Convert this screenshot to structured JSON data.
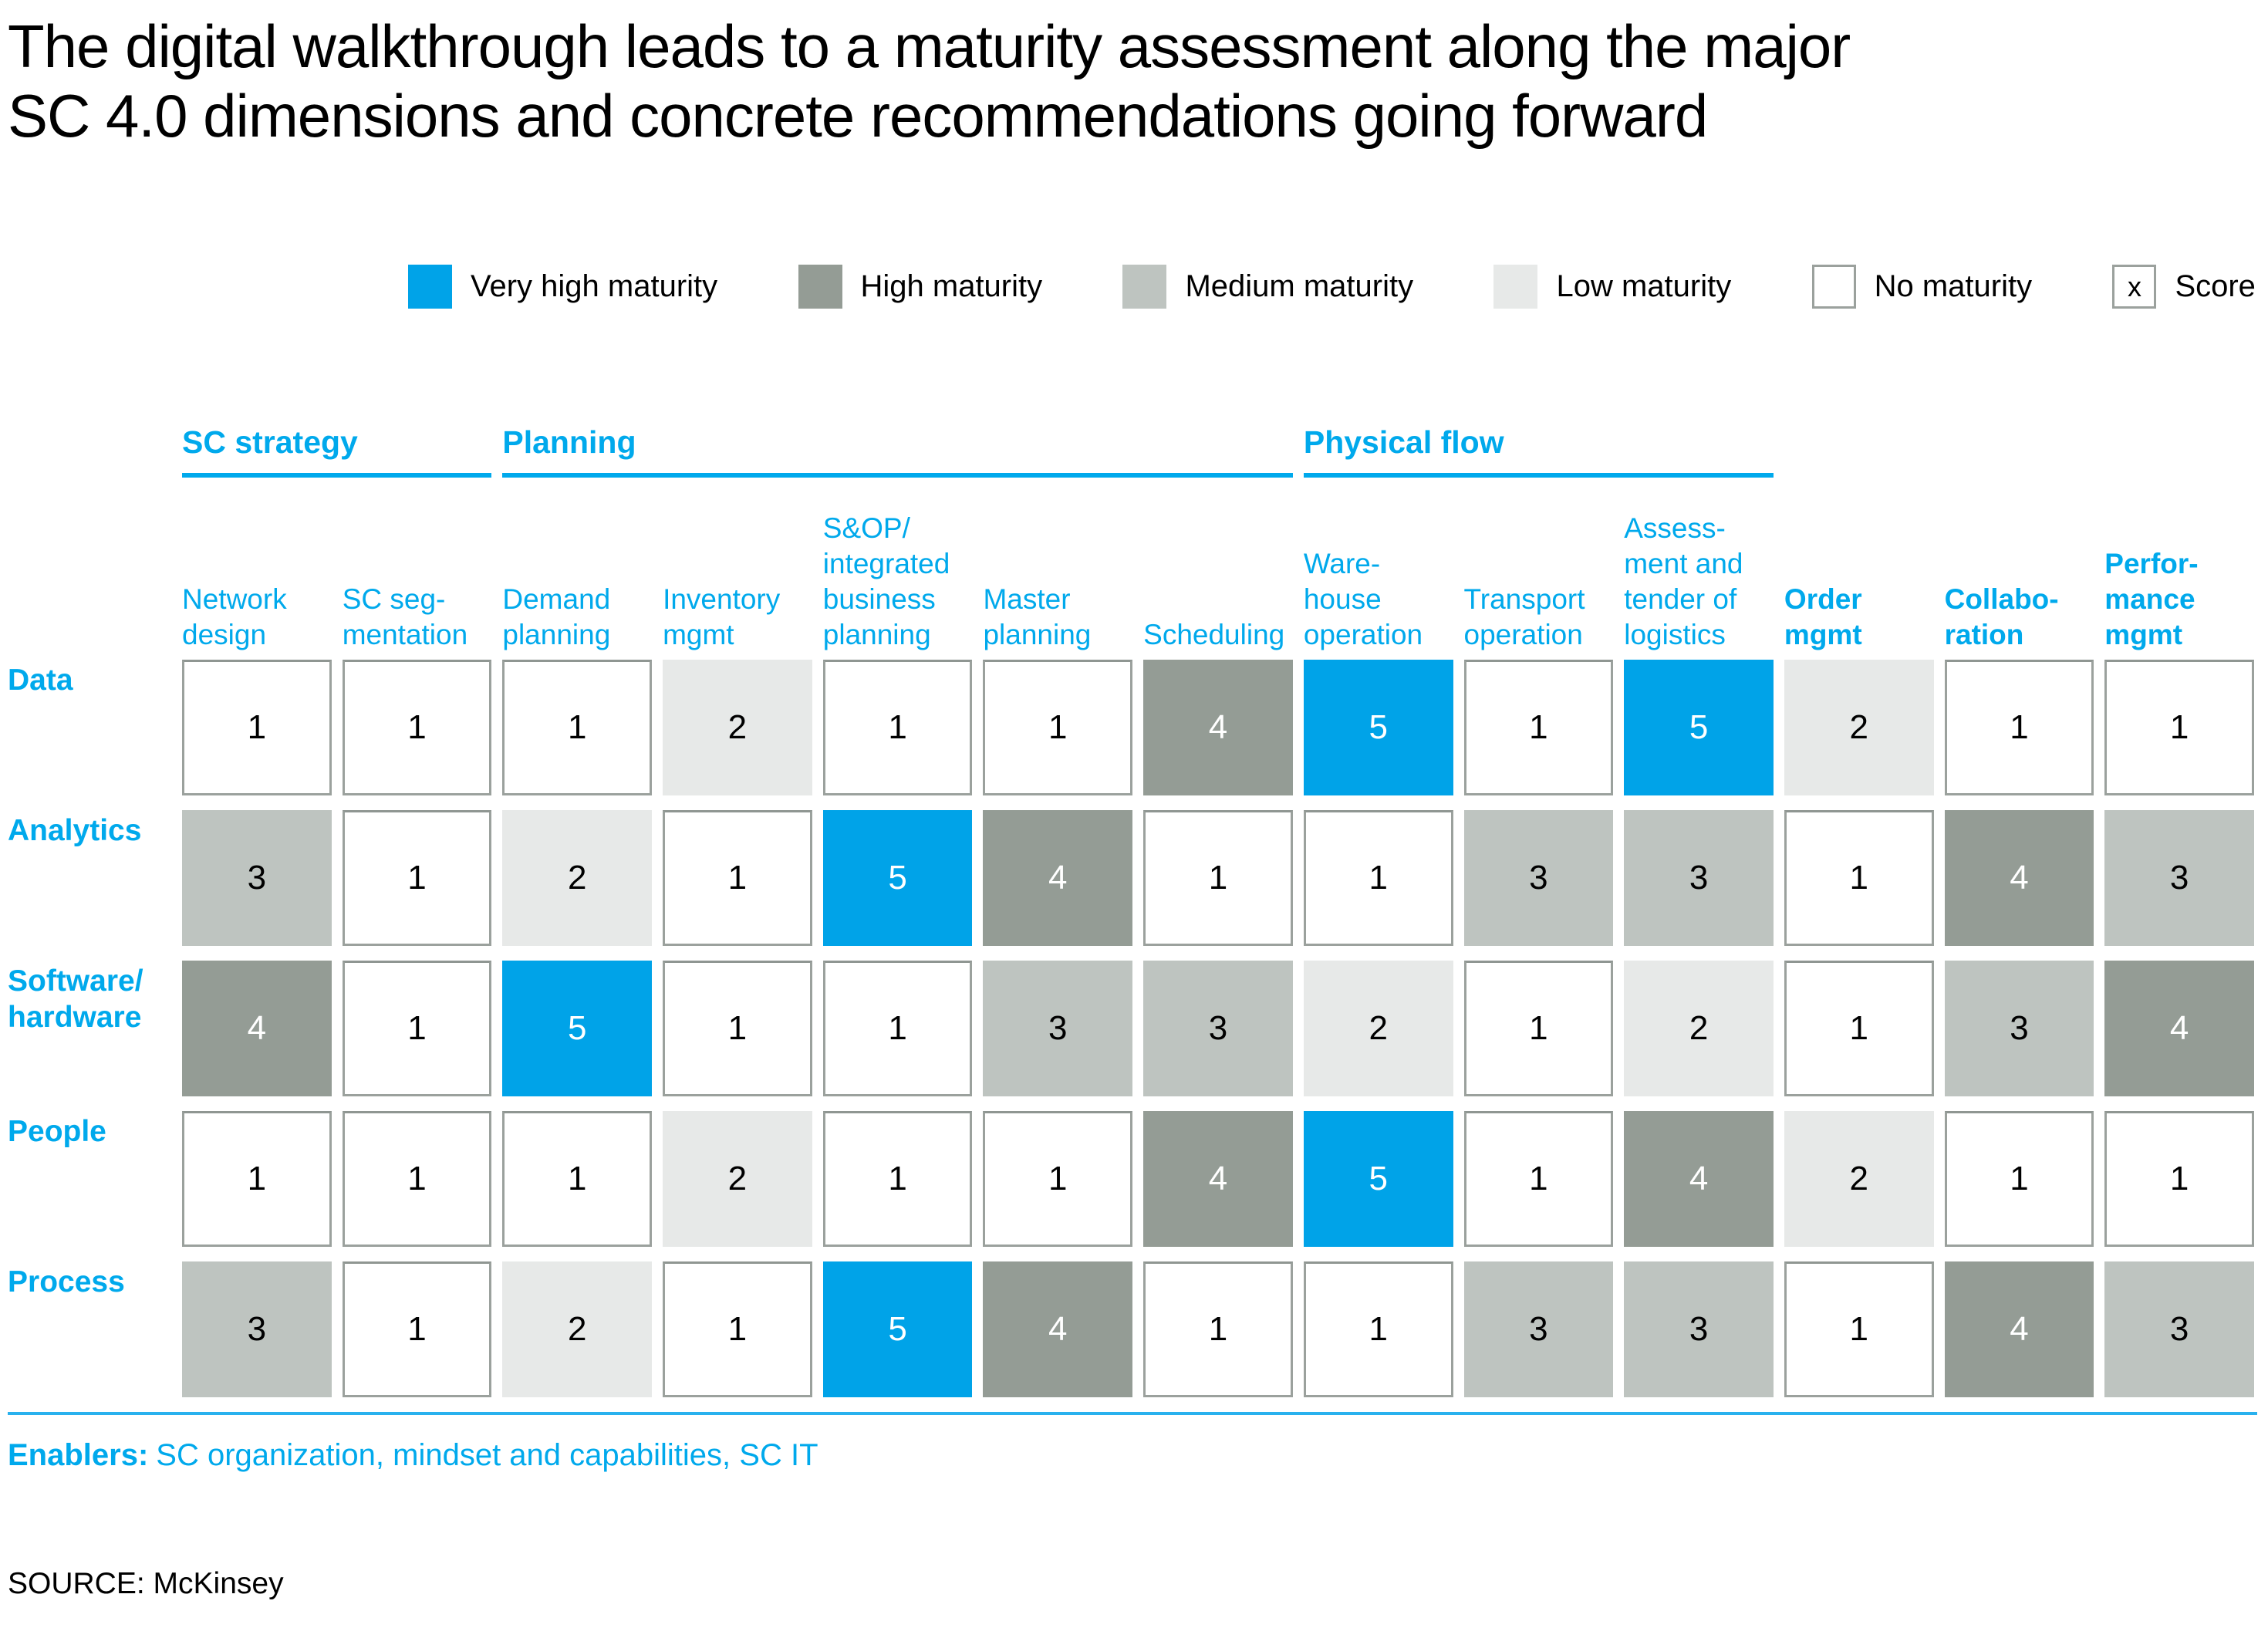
{
  "title": "The digital walkthrough leads to a maturity assessment along the major\nSC 4.0 dimensions and concrete recommendations going forward",
  "legend": {
    "items": [
      {
        "label": "Very high maturity",
        "level": 5
      },
      {
        "label": "High maturity",
        "level": 4
      },
      {
        "label": "Medium maturity",
        "level": 3
      },
      {
        "label": "Low maturity",
        "level": 2
      },
      {
        "label": "No maturity",
        "level": 1
      }
    ],
    "score": {
      "symbol": "x",
      "label": "Score"
    }
  },
  "groups": [
    {
      "label": "SC strategy"
    },
    {
      "label": "Planning"
    },
    {
      "label": "Physical flow"
    }
  ],
  "columns": [
    {
      "label": "Network\ndesign"
    },
    {
      "label": "SC seg-\nmentation"
    },
    {
      "label": "Demand\nplanning"
    },
    {
      "label": "Inventory\nmgmt"
    },
    {
      "label": "S&OP/\nintegrated\nbusiness\nplanning"
    },
    {
      "label": "Master\nplanning"
    },
    {
      "label": "Scheduling"
    },
    {
      "label": "Ware-\nhouse\noperation"
    },
    {
      "label": "Transport\noperation"
    },
    {
      "label": "Assess-\nment and\ntender of\nlogistics"
    },
    {
      "label": "Order\nmgmt"
    },
    {
      "label": "Collabo-\nration"
    },
    {
      "label": "Perfor-\nmance\nmgmt"
    }
  ],
  "rows": [
    {
      "label": "Data",
      "values": [
        1,
        1,
        1,
        2,
        1,
        1,
        4,
        5,
        1,
        5,
        2,
        1,
        1
      ]
    },
    {
      "label": "Analytics",
      "values": [
        3,
        1,
        2,
        1,
        5,
        4,
        1,
        1,
        3,
        3,
        1,
        4,
        3
      ]
    },
    {
      "label": "Software/\nhardware",
      "values": [
        4,
        1,
        5,
        1,
        1,
        3,
        3,
        2,
        1,
        2,
        1,
        3,
        4
      ]
    },
    {
      "label": "People",
      "values": [
        1,
        1,
        1,
        2,
        1,
        1,
        4,
        5,
        1,
        4,
        2,
        1,
        1
      ]
    },
    {
      "label": "Process",
      "values": [
        3,
        1,
        2,
        1,
        5,
        4,
        1,
        1,
        3,
        3,
        1,
        4,
        3
      ]
    }
  ],
  "enablers": {
    "label": "Enablers:",
    "text": "SC organization, mindset and capabilities, SC IT"
  },
  "source": "SOURCE: McKinsey",
  "colors": {
    "accent_blue_text": "#00A9EC",
    "very_high": "#00A3E8",
    "high": "#949C95",
    "medium": "#BEC4C0",
    "low": "#E7E9E8",
    "none": "#FFFFFF",
    "cell_border": "#9BA19D"
  },
  "chart_data": {
    "type": "heatmap",
    "title": "The digital walkthrough leads to a maturity assessment along the major SC 4.0 dimensions and concrete recommendations going forward",
    "column_groups": [
      {
        "label": "SC strategy",
        "columns": [
          "Network design",
          "SC segmentation"
        ]
      },
      {
        "label": "Planning",
        "columns": [
          "Demand planning",
          "Inventory mgmt",
          "S&OP/integrated business planning",
          "Master planning",
          "Scheduling"
        ]
      },
      {
        "label": "Physical flow",
        "columns": [
          "Warehouse operation",
          "Transport operation",
          "Assessment and tender of logistics"
        ]
      }
    ],
    "categories": [
      "Network design",
      "SC segmentation",
      "Demand planning",
      "Inventory mgmt",
      "S&OP/integrated business planning",
      "Master planning",
      "Scheduling",
      "Warehouse operation",
      "Transport operation",
      "Assessment and tender of logistics",
      "Order mgmt",
      "Collaboration",
      "Performance mgmt"
    ],
    "series": [
      {
        "name": "Data",
        "values": [
          1,
          1,
          1,
          2,
          1,
          1,
          4,
          5,
          1,
          5,
          2,
          1,
          1
        ]
      },
      {
        "name": "Analytics",
        "values": [
          3,
          1,
          2,
          1,
          5,
          4,
          1,
          1,
          3,
          3,
          1,
          4,
          3
        ]
      },
      {
        "name": "Software/hardware",
        "values": [
          4,
          1,
          5,
          1,
          1,
          3,
          3,
          2,
          1,
          2,
          1,
          3,
          4
        ]
      },
      {
        "name": "People",
        "values": [
          1,
          1,
          1,
          2,
          1,
          1,
          4,
          5,
          1,
          4,
          2,
          1,
          1
        ]
      },
      {
        "name": "Process",
        "values": [
          3,
          1,
          2,
          1,
          5,
          4,
          1,
          1,
          3,
          3,
          1,
          4,
          3
        ]
      }
    ],
    "value_scale": {
      "5": "Very high maturity",
      "4": "High maturity",
      "3": "Medium maturity",
      "2": "Low maturity",
      "1": "No maturity"
    },
    "legend_position": "top",
    "grid": false
  }
}
